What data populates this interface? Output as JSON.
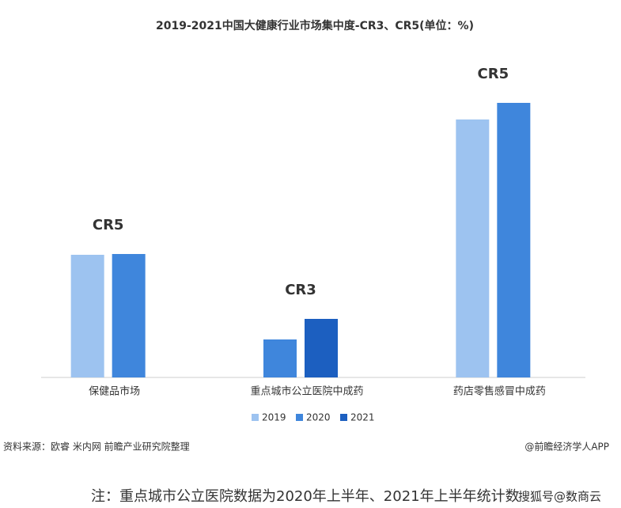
{
  "chart_data": {
    "type": "bar",
    "title": "2019-2021中国大健康行业市场集中度-CR3、CR5(单位：%)",
    "categories": [
      "保健品市场",
      "重点城市公立医院中成药",
      "药店零售感冒中成药"
    ],
    "group_labels": [
      "CR5",
      "CR3",
      "CR5"
    ],
    "series": [
      {
        "name": "2019",
        "color": "#9dc3f0",
        "values": [
          31,
          null,
          65.2
        ]
      },
      {
        "name": "2020",
        "color": "#3f86dc",
        "values": [
          31.2,
          9.6,
          69.4
        ]
      },
      {
        "name": "2021",
        "color": "#1c5fc0",
        "values": [
          null,
          14.8,
          null
        ]
      }
    ],
    "ylim": [
      0,
      80
    ],
    "source": "资料来源：欧睿 米内网 前瞻产业研究院整理",
    "credit": "@前瞻经济学人APP",
    "footnote": "注：重点城市公立医院数据为2020年上半年、2021年上半年统计数",
    "overlay": "搜狐号@数商云"
  }
}
